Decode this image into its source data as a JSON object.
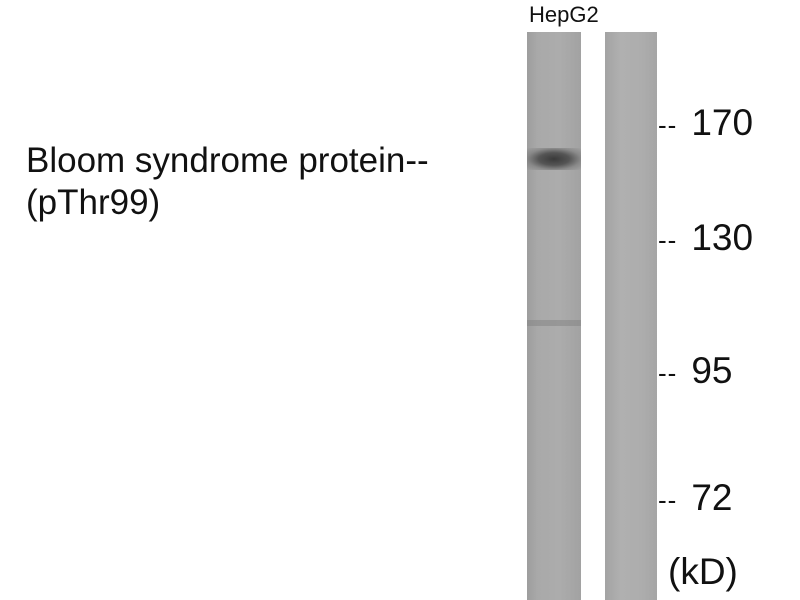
{
  "lanes": [
    {
      "label": "HepG2"
    },
    {
      "label": ""
    }
  ],
  "target": {
    "name": "Bloom syndrome protein--",
    "modification": "(pThr99)"
  },
  "markers": [
    {
      "dash": "--",
      "value": "170"
    },
    {
      "dash": "--",
      "value": "130"
    },
    {
      "dash": "--",
      "value": "95"
    },
    {
      "dash": "--",
      "value": "72"
    }
  ],
  "unit": "(kD)"
}
